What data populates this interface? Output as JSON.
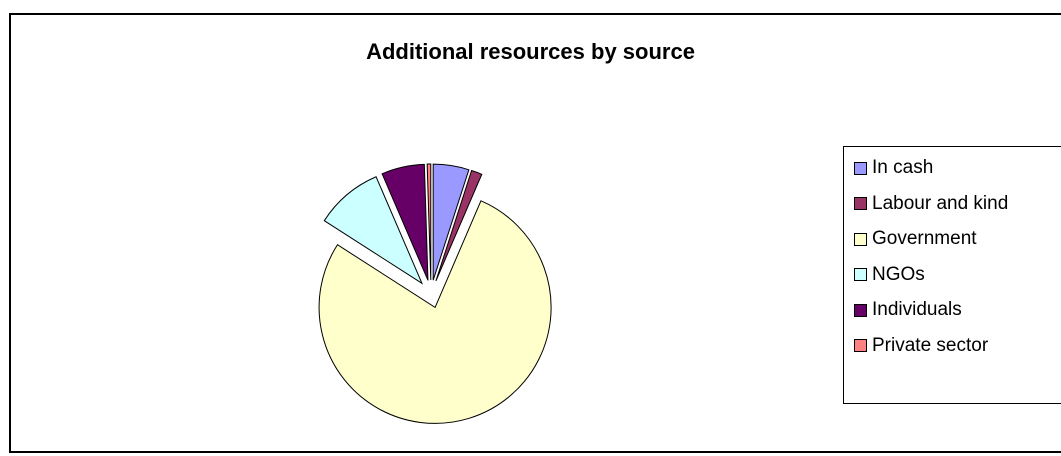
{
  "chart_data": {
    "type": "pie",
    "title": "Additional resources by source",
    "categories": [
      "In cash",
      "Labour and kind",
      "Government",
      "NGOs",
      "Individuals",
      "Private sector"
    ],
    "values": [
      5.0,
      1.5,
      78.0,
      9.5,
      6.0,
      0.5
    ],
    "colors": [
      "#9999FF",
      "#993366",
      "#FFFFCC",
      "#CCFFFF",
      "#660066",
      "#FF8080"
    ],
    "exploded": true,
    "legend_position": "right"
  }
}
